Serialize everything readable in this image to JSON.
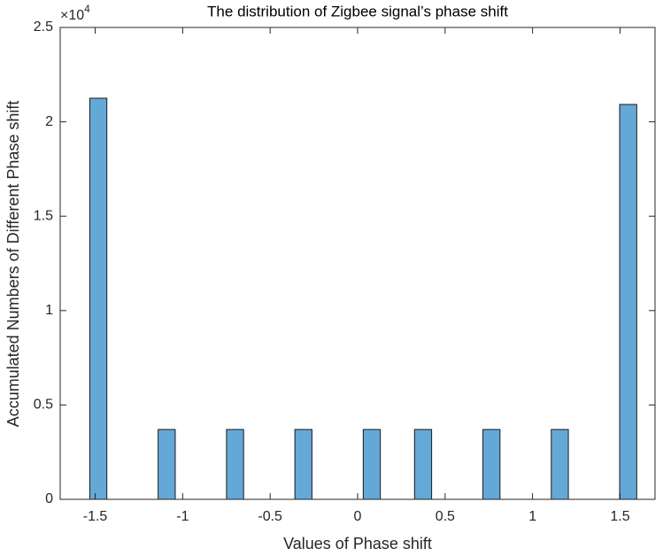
{
  "chart_data": {
    "type": "histogram",
    "title": "The distribution of Zigbee signal’s phase shift",
    "x_label": "Values of Phase shift",
    "y_label": "Accumulated Numbers of Different Phase shift",
    "y_multiplier": {
      "base": "×10",
      "exponent": "4"
    },
    "bins": [
      -1.531,
      -1.4333,
      -1.3356,
      -1.2379,
      -1.1402,
      -1.0425,
      -0.9448,
      -0.8471,
      -0.7494,
      -0.6517,
      -0.554,
      -0.4563,
      -0.3586,
      -0.2609,
      -0.1632,
      -0.0655,
      0.0322,
      0.1299,
      0.2276,
      0.3253,
      0.423,
      0.5207,
      0.6184,
      0.7161,
      0.8138,
      0.9115,
      1.0092,
      1.1069,
      1.2046,
      1.3023,
      1.4,
      1.4977,
      1.5954
    ],
    "values": [
      21250,
      0,
      0,
      0,
      3700,
      0,
      0,
      0,
      3700,
      0,
      0,
      0,
      3700,
      0,
      0,
      0,
      3700,
      0,
      0,
      3700,
      0,
      0,
      0,
      3700,
      0,
      0,
      0,
      3700,
      0,
      0,
      0,
      20920
    ],
    "color": "#64a8d8",
    "xlim": [
      -1.7,
      1.7
    ],
    "xticks": [
      -1.5,
      -1,
      -0.5,
      0,
      0.5,
      1,
      1.5
    ],
    "ylim": [
      0,
      25000
    ],
    "yticks": [
      0,
      {
        "value": 5000,
        "label": "0.5"
      },
      {
        "value": 10000,
        "label": "1"
      },
      {
        "value": 15000,
        "label": "1.5"
      },
      {
        "value": 20000,
        "label": "2"
      },
      {
        "value": 25000,
        "label": "2.5"
      }
    ],
    "grid": false
  }
}
